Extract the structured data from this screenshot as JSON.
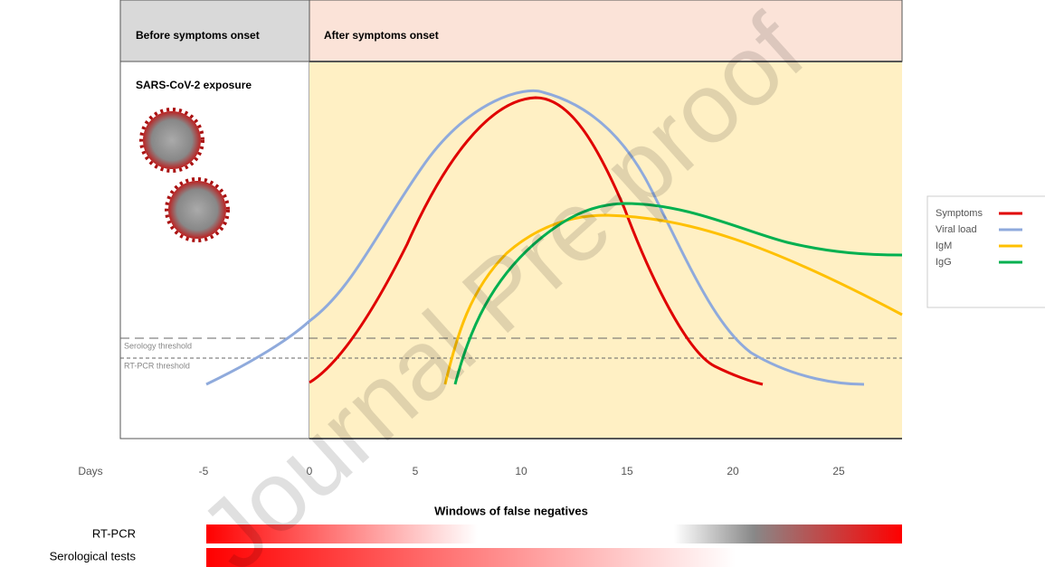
{
  "header": {
    "before": "Before symptoms onset",
    "after": "After symptoms onset"
  },
  "exposure_label": "SARS-CoV-2 exposure",
  "thresholds": {
    "serology": "Serology threshold",
    "rtpcr": "RT-PCR threshold"
  },
  "legend": [
    "Symptoms",
    "Viral load",
    "IgM",
    "IgG"
  ],
  "x_axis": {
    "label": "Days",
    "ticks": [
      "-5",
      "0",
      "5",
      "10",
      "15",
      "20",
      "25"
    ]
  },
  "windows": {
    "title": "Windows of false negatives",
    "rows": [
      "RT-PCR",
      "Serological tests"
    ]
  },
  "watermark": "Journal Pre-proof"
}
